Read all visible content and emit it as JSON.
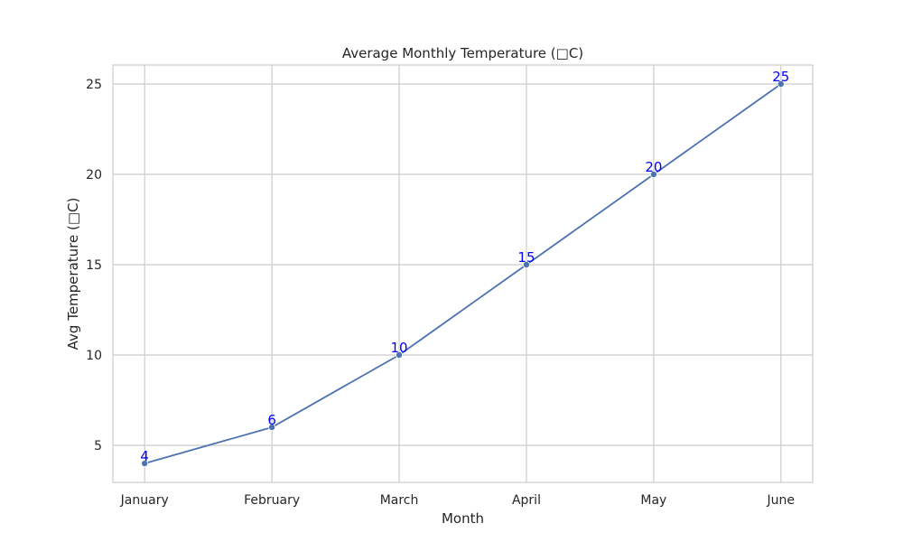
{
  "chart_data": {
    "type": "line",
    "title": "Average Monthly Temperature (□C)",
    "xlabel": "Month",
    "ylabel": "Avg Temperature (□C)",
    "categories": [
      "January",
      "February",
      "March",
      "April",
      "May",
      "June"
    ],
    "series": [
      {
        "values": [
          4,
          6,
          10,
          15,
          20,
          25
        ],
        "color": "#4c72b0"
      }
    ],
    "data_labels": [
      "4",
      "6",
      "10",
      "15",
      "20",
      "25"
    ],
    "data_label_color": "#0000ff",
    "ylim": [
      2.95,
      26.05
    ],
    "yticks": [
      5,
      10,
      15,
      20,
      25
    ],
    "ytick_labels": [
      "5",
      "10",
      "15",
      "20",
      "25"
    ],
    "grid": true,
    "grid_color": "#cccccc",
    "marker": "circle"
  }
}
